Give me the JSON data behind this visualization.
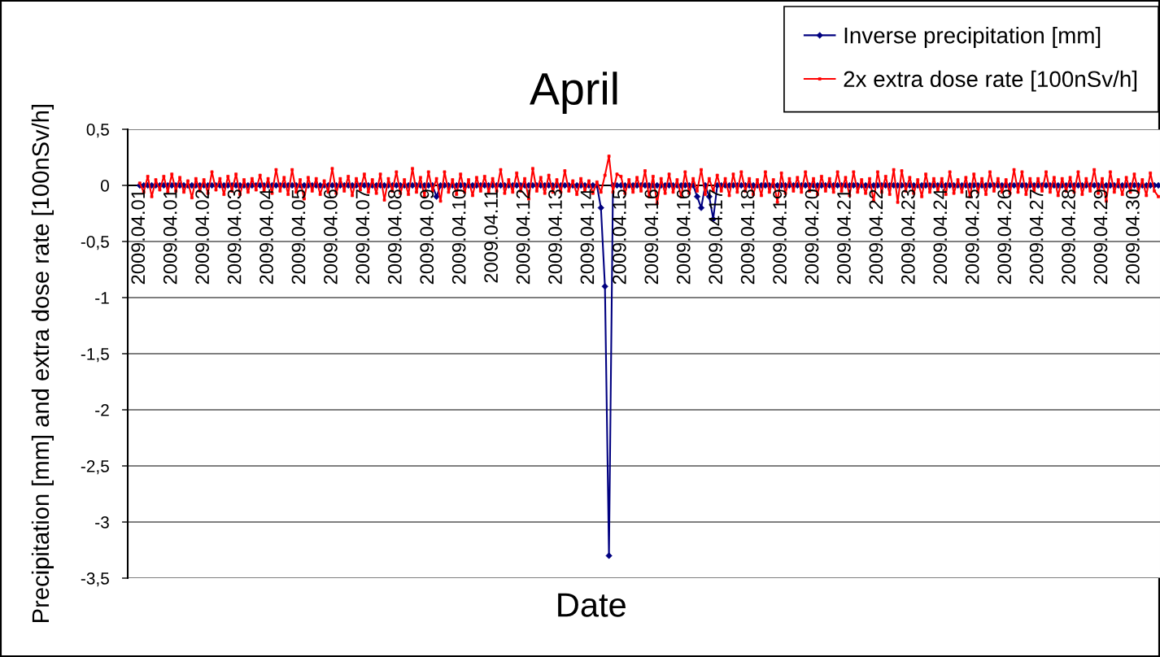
{
  "chart_data": {
    "type": "line",
    "title": "April",
    "xlabel": "Date",
    "ylabel": "Precipitation [mm] and extra dose rate [100nSv/h]",
    "categories": [
      "2009.04.01",
      null,
      null,
      null,
      null,
      null,
      null,
      null,
      "2009.04.01",
      null,
      null,
      null,
      null,
      null,
      null,
      null,
      "2009.04.02",
      null,
      null,
      null,
      null,
      null,
      null,
      null,
      "2009.04.03",
      null,
      null,
      null,
      null,
      null,
      null,
      null,
      "2009.04.04",
      null,
      null,
      null,
      null,
      null,
      null,
      null,
      "2009.04.05",
      null,
      null,
      null,
      null,
      null,
      null,
      null,
      "2009.04.06",
      null,
      null,
      null,
      null,
      null,
      null,
      null,
      "2009.04.07",
      null,
      null,
      null,
      null,
      null,
      null,
      null,
      "2009.04.08",
      null,
      null,
      null,
      null,
      null,
      null,
      null,
      "2009.04.09",
      null,
      null,
      null,
      null,
      null,
      null,
      null,
      "2009.04.10",
      null,
      null,
      null,
      null,
      null,
      null,
      null,
      "2009.04.11",
      null,
      null,
      null,
      null,
      null,
      null,
      null,
      "2009.04.12",
      null,
      null,
      null,
      null,
      null,
      null,
      null,
      "2009.04.13",
      null,
      null,
      null,
      null,
      null,
      null,
      null,
      "2009.04.14",
      null,
      null,
      null,
      null,
      null,
      null,
      null,
      "2009.04.15",
      null,
      null,
      null,
      null,
      null,
      null,
      null,
      "2009.04.16",
      null,
      null,
      null,
      null,
      null,
      null,
      null,
      "2009.04.16",
      null,
      null,
      null,
      null,
      null,
      null,
      null,
      "2009.04.17",
      null,
      null,
      null,
      null,
      null,
      null,
      null,
      "2009.04.18",
      null,
      null,
      null,
      null,
      null,
      null,
      null,
      "2009.04.19",
      null,
      null,
      null,
      null,
      null,
      null,
      null,
      "2009.04.20",
      null,
      null,
      null,
      null,
      null,
      null,
      null,
      "2009.04.21",
      null,
      null,
      null,
      null,
      null,
      null,
      null,
      "2009.04.22",
      null,
      null,
      null,
      null,
      null,
      null,
      null,
      "2009.04.23",
      null,
      null,
      null,
      null,
      null,
      null,
      null,
      "2009.04.24",
      null,
      null,
      null,
      null,
      null,
      null,
      null,
      "2009.04.25",
      null,
      null,
      null,
      null,
      null,
      null,
      null,
      "2009.04.26",
      null,
      null,
      null,
      null,
      null,
      null,
      null,
      "2009.04.27",
      null,
      null,
      null,
      null,
      null,
      null,
      null,
      "2009.04.28",
      null,
      null,
      null,
      null,
      null,
      null,
      null,
      "2009.04.29",
      null,
      null,
      null,
      null,
      null,
      null,
      null,
      "2009.04.30",
      null,
      null,
      null,
      null,
      null,
      null
    ],
    "ylim": [
      -3.5,
      0.5
    ],
    "yticks": [
      {
        "value": 0.5,
        "label": "0,5"
      },
      0,
      {
        "value": -0.5,
        "label": "-0,5"
      },
      -1,
      {
        "value": -1.5,
        "label": "-1,5"
      },
      -2,
      {
        "value": -2.5,
        "label": "-2,5"
      },
      -3,
      {
        "value": -3.5,
        "label": "-3,5"
      }
    ],
    "grid": "y",
    "legend": "top right",
    "line_style": "solid",
    "series": [
      {
        "name": "Inverse precipitation [mm]",
        "color": "#000080",
        "marker": "diamond",
        "values": [
          0,
          0,
          0,
          0,
          0,
          0,
          0,
          0,
          0,
          0,
          0,
          0,
          0,
          0,
          0,
          0,
          0,
          0,
          0,
          0,
          0,
          0,
          0,
          0,
          0,
          0,
          0,
          0,
          0,
          0,
          0,
          0,
          0,
          0,
          0,
          0,
          0,
          0,
          0,
          0,
          0,
          0,
          0,
          0,
          0,
          0,
          0,
          0,
          0,
          0,
          0,
          0,
          0,
          0,
          0,
          0,
          0,
          0,
          0,
          0,
          0,
          0,
          0,
          0,
          0,
          0,
          0,
          0,
          0,
          0,
          0,
          0,
          0,
          0,
          -0.1,
          0,
          0,
          0,
          0,
          0,
          0,
          0,
          0,
          0,
          0,
          0,
          0,
          0,
          0,
          0,
          0,
          0,
          0,
          0,
          0,
          0,
          0,
          0,
          0,
          0,
          0,
          0,
          0,
          0,
          0,
          0,
          0,
          0,
          0,
          0,
          0,
          0,
          0,
          0,
          0,
          -0.2,
          -0.9,
          -3.3,
          0,
          0,
          0,
          0,
          0,
          0,
          0,
          0,
          0,
          0,
          0,
          0,
          0,
          0,
          0,
          0,
          0,
          0,
          0,
          0,
          0,
          -0.1,
          -0.2,
          0,
          -0.1,
          -0.3,
          0,
          0,
          0,
          0,
          0,
          0,
          0,
          0,
          0,
          0,
          0,
          0,
          0,
          0,
          0,
          0,
          0,
          0,
          0,
          0,
          0,
          0,
          0,
          0,
          0,
          0,
          0,
          0,
          0,
          0,
          0,
          0,
          0,
          0,
          0,
          0,
          0,
          0,
          0,
          0,
          0,
          0,
          0,
          0,
          0,
          0,
          0,
          0,
          0,
          0,
          0,
          0,
          0,
          0,
          0,
          0,
          0,
          0,
          0,
          0,
          0,
          0,
          0,
          0,
          0,
          0,
          0,
          0,
          0,
          0,
          0,
          0,
          0,
          0,
          0,
          0,
          0,
          0,
          0,
          0,
          0,
          0,
          0,
          0,
          0,
          0,
          0,
          0,
          0,
          0,
          0,
          0,
          0,
          0,
          0,
          0,
          0,
          0,
          0,
          0,
          0,
          0,
          0,
          0,
          0,
          0,
          0,
          0,
          0,
          0,
          0
        ]
      },
      {
        "name": "2x extra dose rate [100nSv/h]",
        "color": "#ff0000",
        "marker": "square",
        "values": [
          0.02,
          -0.06,
          0.08,
          -0.1,
          0.05,
          -0.04,
          0.08,
          -0.06,
          0.1,
          -0.05,
          0.07,
          -0.06,
          0.04,
          -0.11,
          0.06,
          -0.05,
          0.05,
          -0.07,
          0.12,
          -0.04,
          0.06,
          -0.08,
          0.08,
          -0.05,
          0.1,
          -0.08,
          0.05,
          -0.06,
          0.06,
          -0.04,
          0.09,
          -0.05,
          0.06,
          -0.07,
          0.14,
          -0.05,
          0.07,
          -0.08,
          0.14,
          -0.06,
          0.05,
          -0.12,
          0.07,
          -0.05,
          0.06,
          -0.08,
          0.04,
          -0.06,
          0.15,
          -0.07,
          0.06,
          -0.05,
          0.08,
          -0.09,
          0.06,
          -0.04,
          0.1,
          -0.06,
          0.05,
          -0.07,
          0.1,
          -0.13,
          0.06,
          -0.05,
          0.12,
          -0.07,
          0.05,
          -0.08,
          0.15,
          -0.06,
          0.07,
          -0.1,
          0.12,
          -0.05,
          0.06,
          -0.14,
          0.12,
          -0.06,
          0.05,
          -0.08,
          0.1,
          -0.06,
          0.05,
          -0.09,
          0.07,
          -0.05,
          0.08,
          -0.06,
          0.06,
          -0.05,
          0.14,
          -0.07,
          0.05,
          -0.06,
          0.11,
          -0.05,
          0.06,
          -0.12,
          0.15,
          -0.05,
          0.07,
          -0.07,
          0.09,
          -0.06,
          0.05,
          -0.06,
          0.13,
          -0.05,
          0.04,
          -0.08,
          0.06,
          -0.05,
          0.04,
          -0.07,
          0.03,
          -0.06,
          0.09,
          0.26,
          -0.06,
          0.1,
          0.08,
          -0.07,
          0.05,
          -0.06,
          0.07,
          -0.05,
          0.13,
          -0.1,
          0.08,
          -0.16,
          0.06,
          -0.07,
          0.1,
          -0.06,
          0.05,
          -0.1,
          0.12,
          -0.07,
          0.06,
          -0.05,
          0.14,
          -0.08,
          0.06,
          -0.05,
          0.09,
          -0.05,
          0.06,
          -0.09,
          0.1,
          -0.06,
          0.12,
          -0.05,
          0.06,
          -0.08,
          0.05,
          -0.09,
          0.12,
          -0.06,
          0.05,
          -0.15,
          0.11,
          -0.07,
          0.06,
          -0.05,
          0.07,
          -0.06,
          0.12,
          -0.05,
          0.06,
          -0.08,
          0.08,
          -0.05,
          0.06,
          -0.06,
          0.12,
          -0.05,
          0.07,
          -0.09,
          0.12,
          -0.06,
          0.05,
          -0.07,
          0.06,
          -0.14,
          0.12,
          -0.06,
          0.08,
          -0.08,
          0.14,
          -0.15,
          0.13,
          -0.05,
          0.07,
          -0.07,
          0.05,
          -0.1,
          0.1,
          -0.06,
          0.06,
          -0.05,
          0.06,
          -0.08,
          0.12,
          -0.07,
          0.05,
          -0.06,
          0.07,
          -0.1,
          0.1,
          -0.06,
          0.06,
          -0.08,
          0.12,
          -0.05,
          0.06,
          -0.06,
          0.05,
          -0.07,
          0.14,
          -0.06,
          0.12,
          -0.08,
          0.06,
          -0.05,
          0.06,
          -0.05,
          0.12,
          -0.06,
          0.07,
          -0.09,
          0.06,
          -0.05,
          0.07,
          -0.06,
          0.12,
          -0.08,
          0.06,
          -0.05,
          0.14,
          -0.07,
          0.06,
          -0.14,
          0.12,
          -0.06,
          0.05,
          -0.08,
          0.07,
          -0.06,
          0.1,
          -0.06,
          0.05,
          -0.09,
          0.11,
          -0.05,
          -0.1
        ]
      }
    ]
  }
}
